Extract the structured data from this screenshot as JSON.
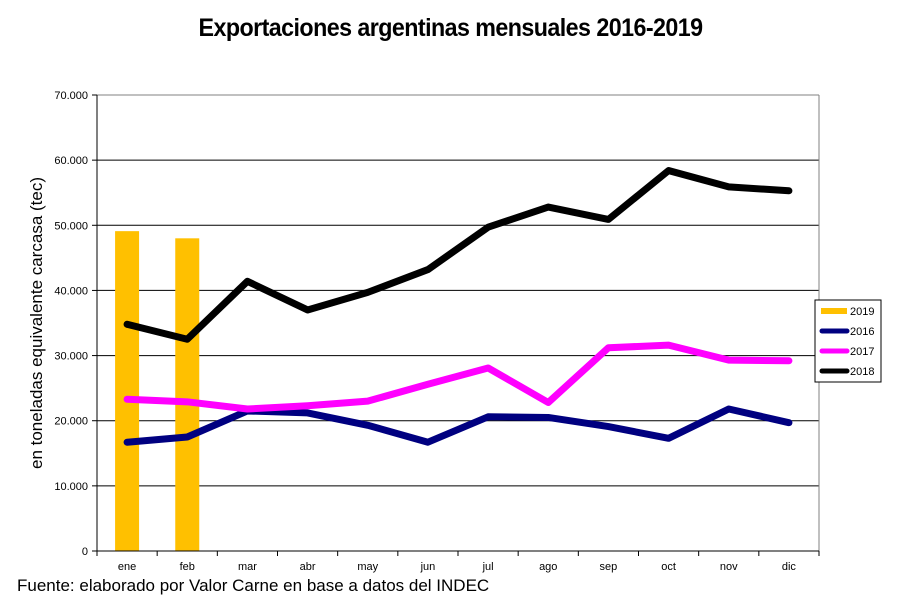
{
  "chart_data": {
    "type": "line",
    "title": "Exportaciones argentinas mensuales 2016-2019",
    "xlabel": "",
    "ylabel": "en toneladas equivalente carcasa (tec)",
    "ylim": [
      0,
      70000
    ],
    "yticks": [
      0,
      10000,
      20000,
      30000,
      40000,
      50000,
      60000,
      70000
    ],
    "ytick_labels": [
      "0",
      "10.000",
      "20.000",
      "30.000",
      "40.000",
      "50.000",
      "60.000",
      "70.000"
    ],
    "grid": true,
    "legend_position": "right",
    "categories": [
      "ene",
      "feb",
      "mar",
      "abr",
      "may",
      "jun",
      "jul",
      "ago",
      "sep",
      "oct",
      "nov",
      "dic"
    ],
    "series": [
      {
        "name": "2019",
        "type": "bar",
        "color": "#FFC000",
        "values": [
          49100,
          48000,
          null,
          null,
          null,
          null,
          null,
          null,
          null,
          null,
          null,
          null
        ]
      },
      {
        "name": "2016",
        "type": "line",
        "color": "#000080",
        "values": [
          16700,
          17500,
          21500,
          21200,
          19300,
          16700,
          20600,
          20500,
          19100,
          17300,
          21800,
          19700
        ]
      },
      {
        "name": "2017",
        "type": "line",
        "color": "#FF00FF",
        "values": [
          23300,
          22900,
          21800,
          22300,
          23000,
          25600,
          28100,
          22800,
          31200,
          31600,
          29300,
          29200
        ]
      },
      {
        "name": "2018",
        "type": "line",
        "color": "#000000",
        "values": [
          34800,
          32500,
          41400,
          37000,
          39700,
          43200,
          49700,
          52800,
          50900,
          58400,
          55900,
          55300
        ]
      }
    ],
    "legend_order": [
      "2019",
      "2016",
      "2017",
      "2018"
    ]
  },
  "source_note": "Fuente: elaborado por  Valor Carne en base a datos del INDEC"
}
